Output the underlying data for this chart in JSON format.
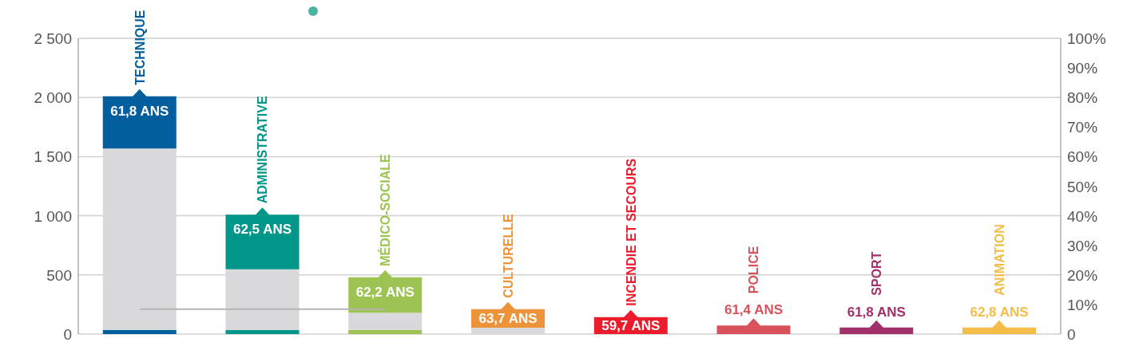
{
  "chart_data": {
    "type": "bar",
    "stacked": true,
    "grid": "y",
    "legend": false,
    "categories": [
      "TECHNIQUE",
      "ADMINISTRATIVE",
      "MÉDICO-SOCIALE",
      "CULTURELLE",
      "INCENDIE ET SECOURS",
      "POLICE",
      "SPORT",
      "ANIMATION"
    ],
    "ylim": [
      0,
      2500
    ],
    "yticks": [
      0,
      500,
      {
        "value": 1000,
        "label": "1 000"
      },
      {
        "value": 1500,
        "label": "1 500"
      },
      {
        "value": 2000,
        "label": "2 000"
      },
      {
        "value": 2500,
        "label": "2 500"
      }
    ],
    "y2lim": [
      0,
      100
    ],
    "y2ticks": [
      0,
      {
        "value": 10,
        "label": "10%"
      },
      {
        "value": 20,
        "label": "20%"
      },
      {
        "value": 30,
        "label": "30%"
      },
      {
        "value": 40,
        "label": "40%"
      },
      {
        "value": 50,
        "label": "50%"
      },
      {
        "value": 60,
        "label": "60%"
      },
      {
        "value": 70,
        "label": "70%"
      },
      {
        "value": 80,
        "label": "80%"
      },
      {
        "value": 90,
        "label": "90%"
      },
      {
        "value": 100,
        "label": "100%"
      }
    ],
    "series": [
      {
        "colors": [
          "#035e9e",
          "#009689",
          "#9dc452",
          null,
          null,
          null,
          null,
          null
        ],
        "values": [
          36,
          36,
          36,
          null,
          null,
          null,
          null,
          null
        ]
      },
      {
        "color": "#d9d9db",
        "values": [
          1532,
          511,
          144,
          54,
          null,
          null,
          null,
          null
        ]
      },
      {
        "colors": [
          "#035e9e",
          "#009689",
          "#9dc452",
          "#ef933a",
          "#ec1c2d",
          "#d9525b",
          "#a1306b",
          "#f3bd48"
        ],
        "values": [
          442,
          462,
          300,
          156,
          144,
          73,
          56,
          56
        ]
      },
      {
        "type": "line",
        "color": "#b4b4b4",
        "marker": "none",
        "values": [
          210,
          210,
          210,
          null,
          null,
          null,
          null,
          null
        ]
      }
    ],
    "annotations": [
      {
        "text": "61,8 ANS",
        "x": "TECHNIQUE",
        "y": 2010
      },
      {
        "text": "62,5 ANS",
        "x": "ADMINISTRATIVE",
        "y": 1009
      },
      {
        "text": "62,2 ANS",
        "x": "MÉDICO-SOCIALE",
        "y": 480
      },
      {
        "text": "63,7 ANS",
        "x": "CULTURELLE",
        "y": 210
      },
      {
        "text": "59,7 ANS",
        "x": "INCENDIE ET SECOURS",
        "y": 144
      },
      {
        "text": "61,4 ANS",
        "x": "POLICE",
        "y": 73
      },
      {
        "text": "61,8 ANS",
        "x": "SPORT",
        "y": 56
      },
      {
        "text": "62,8 ANS",
        "x": "ANIMATION",
        "y": 56
      }
    ]
  }
}
